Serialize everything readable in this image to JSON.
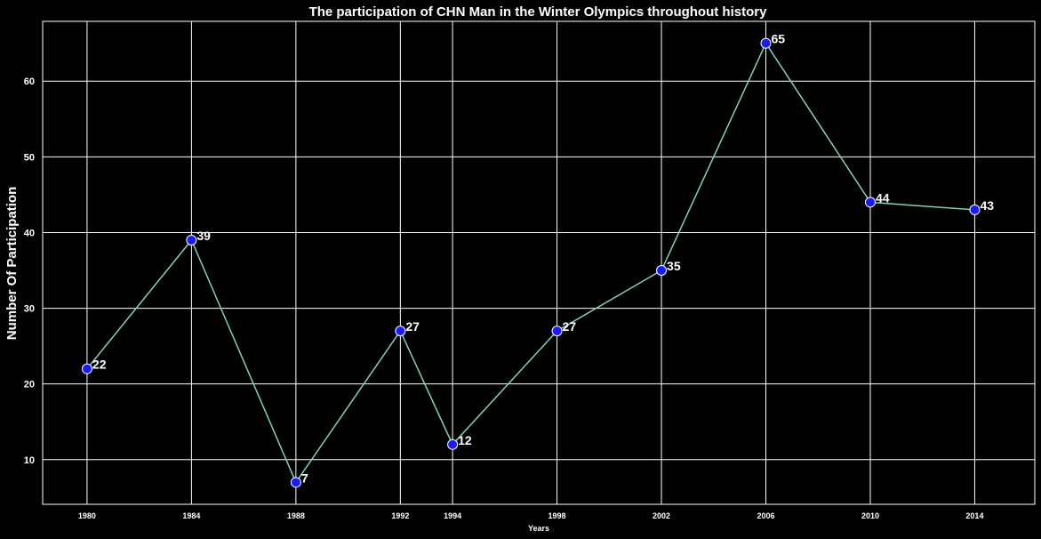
{
  "chart_data": {
    "type": "line",
    "title": "The participation of CHN Man in the Winter Olympics throughout history",
    "xlabel": "Years",
    "ylabel": "Number Of Participation",
    "x": [
      1980,
      1984,
      1988,
      1992,
      1994,
      1998,
      2002,
      2006,
      2010,
      2014
    ],
    "x_tick_labels": [
      "1980",
      "1984",
      "1988",
      "1992",
      "1994",
      "1998",
      "2002",
      "2006",
      "2010",
      "2014"
    ],
    "values": [
      22,
      39,
      7,
      27,
      12,
      27,
      35,
      65,
      44,
      43
    ],
    "data_labels": [
      "22",
      "39",
      "7",
      "27",
      "12",
      "27",
      "35",
      "65",
      "44",
      "43"
    ],
    "y_ticks": [
      10,
      20,
      30,
      40,
      50,
      60
    ],
    "y_tick_labels": [
      "10",
      "20",
      "30",
      "40",
      "50",
      "60"
    ],
    "xlim": [
      1978.3,
      2016.3
    ],
    "ylim": [
      4.1,
      67.9
    ],
    "grid": true,
    "x_axis": "categorical, evenly spaced",
    "colors": {
      "background": "#000000",
      "line": "#7fd1c0",
      "marker_fill": "#1a1aff",
      "marker_edge": "#ffffff",
      "grid": "#ffffff",
      "text": "#ffffff"
    }
  }
}
